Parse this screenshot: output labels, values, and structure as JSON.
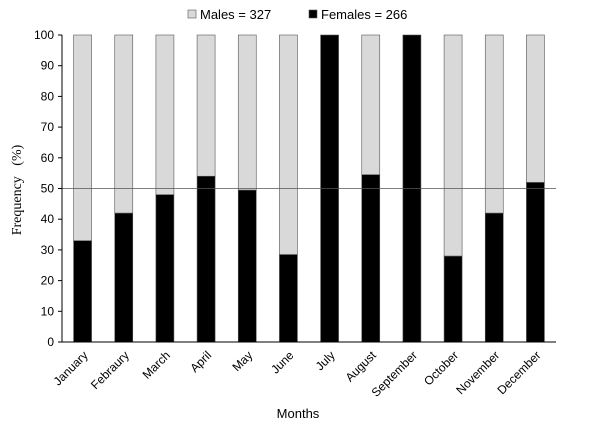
{
  "chart_data": {
    "type": "bar",
    "stacked": true,
    "percent_stacked": true,
    "categories": [
      "January",
      "Febraury",
      "March",
      "April",
      "May",
      "June",
      "July",
      "August",
      "September",
      "October",
      "November",
      "December"
    ],
    "series": [
      {
        "name": "Males = 327",
        "color": "#d9d9d9",
        "values": [
          67,
          58,
          52,
          46,
          50.5,
          71.5,
          0,
          45.5,
          0,
          72,
          58,
          48
        ]
      },
      {
        "name": "Females = 266",
        "color": "#000000",
        "values": [
          33,
          42,
          48,
          54,
          49.5,
          28.5,
          100,
          54.5,
          100,
          28,
          42,
          52
        ]
      }
    ],
    "xlabel": "Months",
    "ylabel": "Frequency   (%)",
    "ylim": [
      0,
      100
    ],
    "yticks": [
      0,
      10,
      20,
      30,
      40,
      50,
      60,
      70,
      80,
      90,
      100
    ],
    "reference_line": 50,
    "legend": "top-center"
  }
}
